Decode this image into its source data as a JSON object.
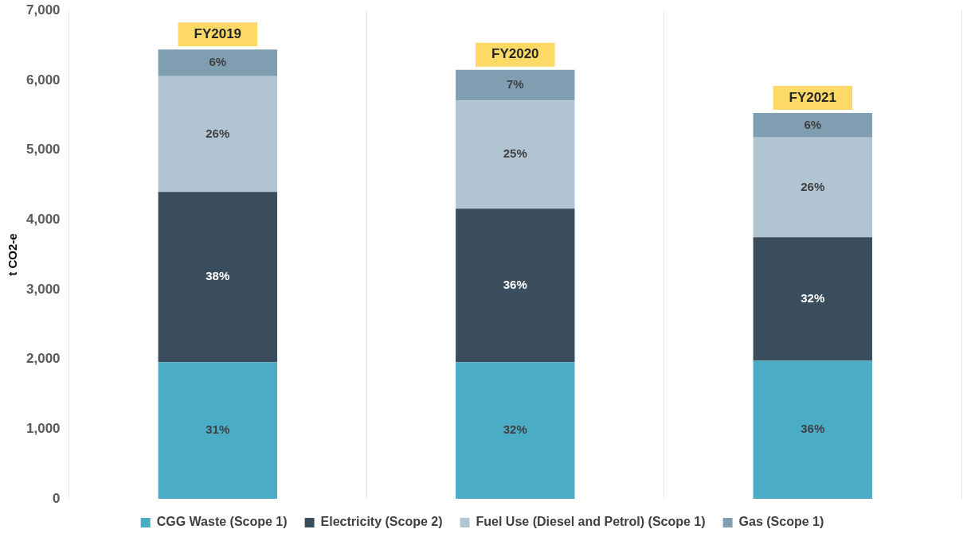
{
  "chart_data": {
    "type": "bar",
    "stacked": true,
    "ylabel": "t CO2-e",
    "categories": [
      "FY2019",
      "FY2020",
      "FY2021"
    ],
    "series": [
      {
        "name": "CGG Waste (Scope 1)",
        "color": "#4bacc6",
        "values": [
          1960,
          1960,
          1980
        ]
      },
      {
        "name": "Electricity (Scope 2)",
        "color": "#3a4d5c",
        "values": [
          2440,
          2200,
          1770
        ]
      },
      {
        "name": "Fuel Use (Diesel and Petrol) (Scope 1)",
        "color": "#b0c4d2",
        "values": [
          1660,
          1550,
          1430
        ]
      },
      {
        "name": "Gas (Scope 1)",
        "color": "#7f9eb2",
        "values": [
          380,
          440,
          350
        ]
      }
    ],
    "annotations": [
      "31%",
      "32%",
      "36%",
      "38%",
      "36%",
      "32%",
      "26%",
      "25%",
      "26%",
      "6%",
      "7%",
      "6%"
    ],
    "ylim": [
      0,
      7000
    ],
    "yticks": [
      0,
      {
        "value": 1000,
        "label": "1,000"
      },
      {
        "value": 2000,
        "label": "2,000"
      },
      {
        "value": 3000,
        "label": "3,000"
      },
      {
        "value": 4000,
        "label": "4,000"
      },
      {
        "value": 5000,
        "label": "5,000"
      },
      {
        "value": 6000,
        "label": "6,000"
      },
      {
        "value": 7000,
        "label": "7,000"
      }
    ],
    "grid": "x",
    "legend": "bottom"
  }
}
